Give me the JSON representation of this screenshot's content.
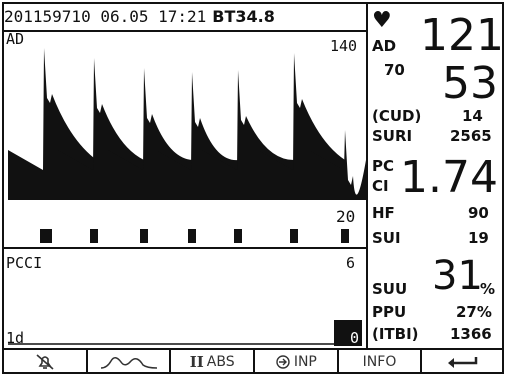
{
  "header": {
    "id_date_time": "201159710 06.05 17:21",
    "bt": "BT34.8"
  },
  "ad_panel": {
    "label": "AD",
    "scale_top": "140",
    "scale_bottom": "20"
  },
  "pcci_panel": {
    "label": "PCCI",
    "scale_top": "6",
    "time_label": "1d",
    "current_value": "0"
  },
  "vitals": {
    "heart_icon": "heart-icon",
    "ad_label": "AD",
    "systolic": "121",
    "mean": "70",
    "diastolic": "53",
    "cud_label": "(CUD)",
    "cud_value": "14",
    "suri_label": "SURI",
    "suri_value": "2565",
    "pc_label": "PC",
    "ci_label": "CI",
    "ci_value": "1.74",
    "hf_label": "HF",
    "hf_value": "90",
    "sui_label": "SUI",
    "sui_value": "19",
    "suu_label": "SUU",
    "suu_value": "31",
    "suu_unit": "%",
    "ppu_label": "PPU",
    "ppu_value": "27%",
    "itbi_label": "(ITBI)",
    "itbi_value": "1366"
  },
  "menu": {
    "mute_icon": "alarm-mute-icon",
    "waveform_icon": "waveform-icon",
    "abs_prefix": "II",
    "abs_label": "ABS",
    "inp_icon": "input-arrow-icon",
    "inp_label": "INP",
    "info_label": "INFO",
    "back_icon": "return-arrow-icon"
  }
}
